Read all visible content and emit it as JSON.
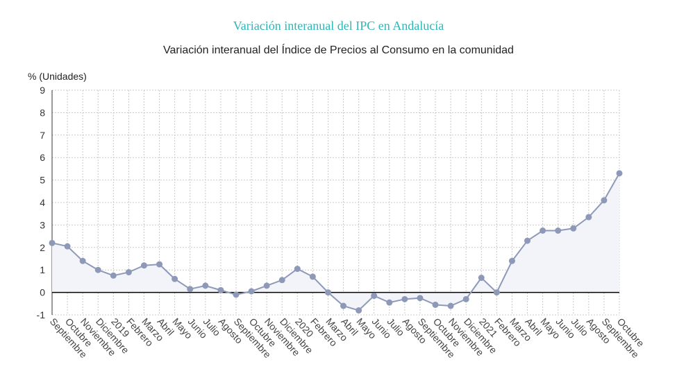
{
  "chart_data": {
    "type": "area",
    "title": "Variación interanual del IPC en Andalucía",
    "subtitle": "Variación interanual del Índice de Precios al Consumo en la comunidad",
    "ylabel": "% (Unidades)",
    "ylim": [
      -1,
      9
    ],
    "yticks": [
      "9",
      "8",
      "7",
      "6",
      "5",
      "4",
      "3",
      "2",
      "1",
      "0",
      "-1"
    ],
    "grid": true,
    "categories": [
      "Septiembre",
      "Octubre",
      "Noviembre",
      "Diciembre",
      "2019",
      "Febrero",
      "Marzo",
      "Abril",
      "Mayo",
      "Junio",
      "Julio",
      "Agosto",
      "Septiembre",
      "Octubre",
      "Noviembre",
      "Diciembre",
      "2020",
      "Febrero",
      "Marzo",
      "Abril",
      "Mayo",
      "Junio",
      "Julio",
      "Agosto",
      "Septiembre",
      "Octubre",
      "Noviembre",
      "Diciembre",
      "2021",
      "Febrero",
      "Marzo",
      "Abril",
      "Mayo",
      "Junio",
      "Julio",
      "Agosto",
      "Septiembre",
      "Octubre"
    ],
    "values": [
      2.2,
      2.05,
      1.4,
      1.0,
      0.75,
      0.9,
      1.2,
      1.25,
      0.6,
      0.15,
      0.3,
      0.1,
      -0.1,
      0.05,
      0.3,
      0.55,
      1.05,
      0.7,
      0.0,
      -0.6,
      -0.8,
      -0.15,
      -0.45,
      -0.3,
      -0.25,
      -0.55,
      -0.6,
      -0.3,
      0.65,
      0.0,
      1.4,
      2.3,
      2.75,
      2.75,
      2.85,
      3.35,
      4.1,
      5.3
    ],
    "colors": {
      "line": "#8e99b8",
      "marker": "#8e99b8",
      "fill": "#f3f4f9",
      "grid": "#c8c8c8",
      "zero": "#000000",
      "title": "#2fb5b5"
    }
  }
}
